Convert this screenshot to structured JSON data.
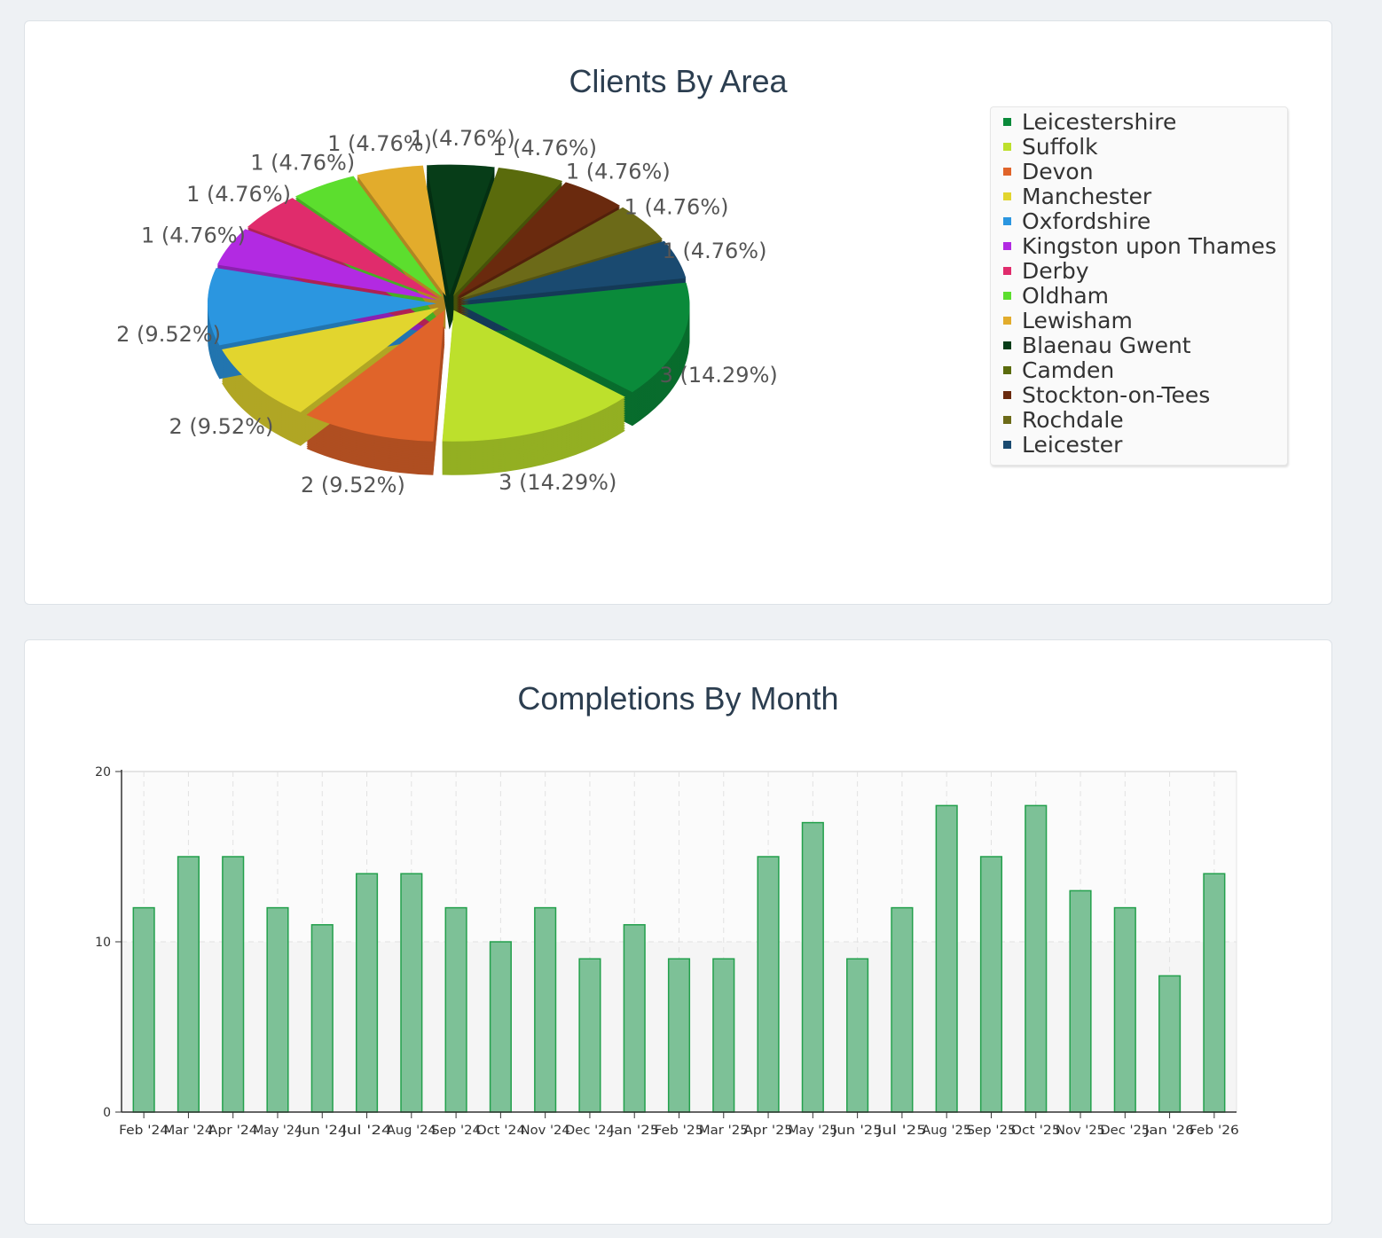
{
  "chart_data": [
    {
      "type": "pie",
      "title": "Clients By Area",
      "legend_position": "right",
      "slices": [
        {
          "label": "Leicestershire",
          "value": 3,
          "display": "3 (14.29%)",
          "color": "#0a8a3a"
        },
        {
          "label": "Suffolk",
          "value": 3,
          "display": "3 (14.29%)",
          "color": "#bde02c"
        },
        {
          "label": "Devon",
          "value": 2,
          "display": "2 (9.52%)",
          "color": "#e0642a"
        },
        {
          "label": "Manchester",
          "value": 2,
          "display": "2 (9.52%)",
          "color": "#e2d52e"
        },
        {
          "label": "Oxfordshire",
          "value": 2,
          "display": "2 (9.52%)",
          "color": "#2b96e0"
        },
        {
          "label": "Kingston upon Thames",
          "value": 1,
          "display": "1 (4.76%)",
          "color": "#b22ae2"
        },
        {
          "label": "Derby",
          "value": 1,
          "display": "1 (4.76%)",
          "color": "#e02c6c"
        },
        {
          "label": "Oldham",
          "value": 1,
          "display": "1 (4.76%)",
          "color": "#5cde2e"
        },
        {
          "label": "Lewisham",
          "value": 1,
          "display": "1 (4.76%)",
          "color": "#e2ac2c"
        },
        {
          "label": "Blaenau Gwent",
          "value": 1,
          "display": "1 (4.76%)",
          "color": "#073d18"
        },
        {
          "label": "Camden",
          "value": 1,
          "display": "1 (4.76%)",
          "color": "#5a6b0c"
        },
        {
          "label": "Stockton-on-Tees",
          "value": 1,
          "display": "1 (4.76%)",
          "color": "#6a2a0e"
        },
        {
          "label": "Rochdale",
          "value": 1,
          "display": "1 (4.76%)",
          "color": "#6c6a18"
        },
        {
          "label": "Leicester",
          "value": 1,
          "display": "1 (4.76%)",
          "color": "#1a4a70"
        }
      ]
    },
    {
      "type": "bar",
      "title": "Completions By Month",
      "categories": [
        "Feb '24",
        "Mar '24",
        "Apr '24",
        "May '24",
        "Jun '24",
        "Jul '24",
        "Aug '24",
        "Sep '24",
        "Oct '24",
        "Nov '24",
        "Dec '24",
        "Jan '25",
        "Feb '25",
        "Mar '25",
        "Apr '25",
        "May '25",
        "Jun '25",
        "Jul '25",
        "Aug '25",
        "Sep '25",
        "Oct '25",
        "Nov '25",
        "Dec '25",
        "Jan '26",
        "Feb '26"
      ],
      "values": [
        12,
        15,
        15,
        12,
        11,
        14,
        14,
        12,
        10,
        12,
        9,
        11,
        9,
        9,
        15,
        17,
        9,
        12,
        18,
        15,
        18,
        13,
        12,
        8,
        14
      ],
      "ylim": [
        0,
        20
      ],
      "yticks": [
        "0",
        "10",
        "20"
      ],
      "grid": true,
      "bar_color": "#7dc197",
      "bar_edge_color": "#23a04c"
    }
  ]
}
